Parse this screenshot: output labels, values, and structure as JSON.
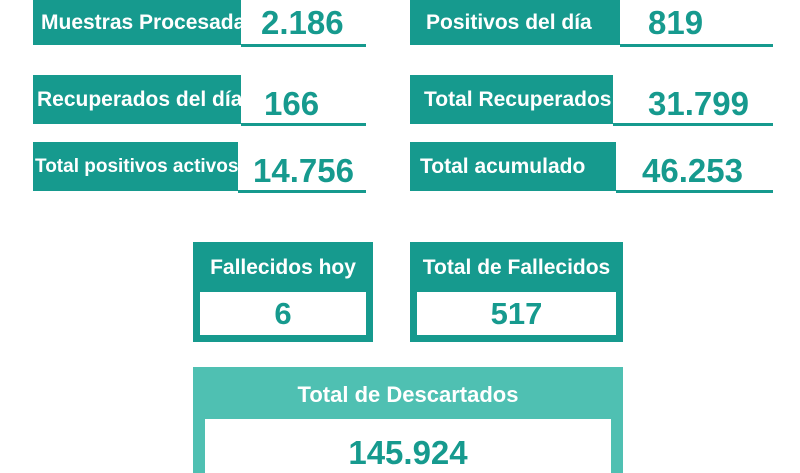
{
  "colors": {
    "primary": "#169a8e",
    "secondary": "#4fc0b2",
    "background": "#ffffff"
  },
  "stats": {
    "muestras_procesadas": {
      "label": "Muestras Procesadas",
      "value": "2.186"
    },
    "positivos_del_dia": {
      "label": "Positivos del día",
      "value": "819"
    },
    "recuperados_del_dia": {
      "label": "Recuperados del día",
      "value": "166"
    },
    "total_recuperados": {
      "label": "Total Recuperados",
      "value": "31.799"
    },
    "total_positivos_activos": {
      "label": "Total positivos activos",
      "value": "14.756"
    },
    "total_acumulado": {
      "label": "Total acumulado",
      "value": "46.253"
    }
  },
  "cards": {
    "fallecidos_hoy": {
      "label": "Fallecidos hoy",
      "value": "6"
    },
    "total_fallecidos": {
      "label": "Total de Fallecidos",
      "value": "517"
    },
    "total_descartados": {
      "label": "Total de Descartados",
      "value": "145.924"
    }
  }
}
